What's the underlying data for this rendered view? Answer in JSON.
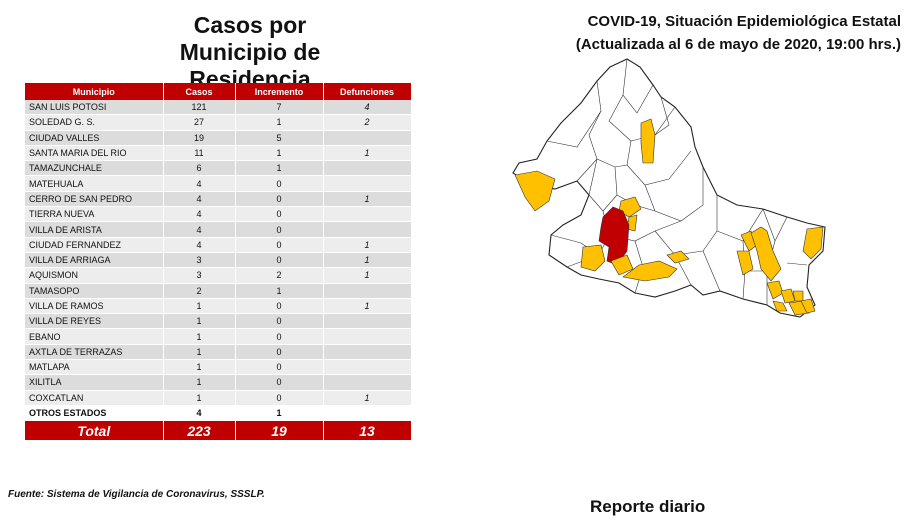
{
  "left_title": {
    "line1": "Casos por",
    "line2": "Municipio de",
    "line3": "Residencia"
  },
  "right_title": {
    "line1": "COVID-19, Situación Epidemiológica Estatal",
    "line2": "(Actualizada al 6 de mayo de 2020, 19:00 hrs.)"
  },
  "table": {
    "headers": {
      "municipio": "Municipio",
      "casos": "Casos",
      "incremento": "Incremento",
      "defunciones": "Defunciones"
    },
    "rows": [
      {
        "municipio": "SAN LUIS POTOSI",
        "casos": "121",
        "incremento": "7",
        "defunciones": "4"
      },
      {
        "municipio": "SOLEDAD G. S.",
        "casos": "27",
        "incremento": "1",
        "defunciones": "2"
      },
      {
        "municipio": "CIUDAD VALLES",
        "casos": "19",
        "incremento": "5",
        "defunciones": ""
      },
      {
        "municipio": "SANTA MARIA DEL RIO",
        "casos": "11",
        "incremento": "1",
        "defunciones": "1"
      },
      {
        "municipio": "TAMAZUNCHALE",
        "casos": "6",
        "incremento": "1",
        "defunciones": ""
      },
      {
        "municipio": "MATEHUALA",
        "casos": "4",
        "incremento": "0",
        "defunciones": ""
      },
      {
        "municipio": "CERRO DE SAN PEDRO",
        "casos": "4",
        "incremento": "0",
        "defunciones": "1"
      },
      {
        "municipio": "TIERRA NUEVA",
        "casos": "4",
        "incremento": "0",
        "defunciones": ""
      },
      {
        "municipio": "VILLA DE ARISTA",
        "casos": "4",
        "incremento": "0",
        "defunciones": ""
      },
      {
        "municipio": "CIUDAD FERNANDEZ",
        "casos": "4",
        "incremento": "0",
        "defunciones": "1"
      },
      {
        "municipio": "VILLA DE ARRIAGA",
        "casos": "3",
        "incremento": "0",
        "defunciones": "1"
      },
      {
        "municipio": "AQUISMON",
        "casos": "3",
        "incremento": "2",
        "defunciones": "1"
      },
      {
        "municipio": "TAMASOPO",
        "casos": "2",
        "incremento": "1",
        "defunciones": ""
      },
      {
        "municipio": "VILLA DE RAMOS",
        "casos": "1",
        "incremento": "0",
        "defunciones": "1"
      },
      {
        "municipio": "VILLA DE REYES",
        "casos": "1",
        "incremento": "0",
        "defunciones": ""
      },
      {
        "municipio": "EBANO",
        "casos": "1",
        "incremento": "0",
        "defunciones": ""
      },
      {
        "municipio": "AXTLA DE TERRAZAS",
        "casos": "1",
        "incremento": "0",
        "defunciones": ""
      },
      {
        "municipio": "MATLAPA",
        "casos": "1",
        "incremento": "0",
        "defunciones": ""
      },
      {
        "municipio": "XILITLA",
        "casos": "1",
        "incremento": "0",
        "defunciones": ""
      },
      {
        "municipio": "COXCATLAN",
        "casos": "1",
        "incremento": "0",
        "defunciones": "1"
      }
    ],
    "otros": {
      "municipio": "OTROS ESTADOS",
      "casos": "4",
      "incremento": "1",
      "defunciones": ""
    },
    "total": {
      "label": "Total",
      "casos": "223",
      "incremento": "19",
      "defunciones": "13"
    }
  },
  "source_note": "Fuente: Sistema de Vigilancia de Coronavirus, SSSLP.",
  "footer": "Reporte diario",
  "colors": {
    "header_red": "#c00000",
    "map_yellow": "#ffc000",
    "map_red": "#c00000"
  }
}
